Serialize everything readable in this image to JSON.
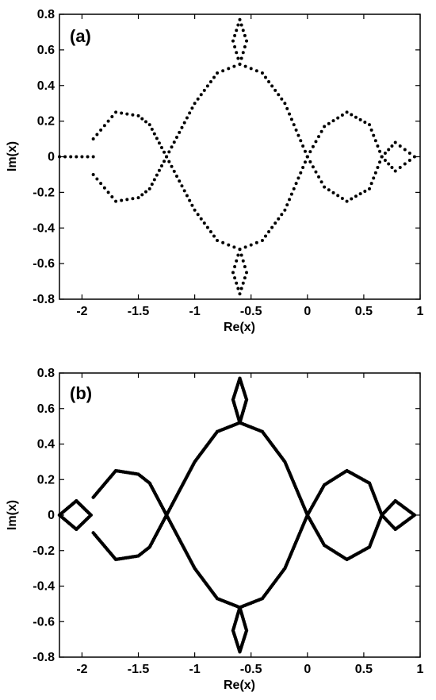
{
  "chart_data": [
    {
      "type": "scatter",
      "panel_label": "(a)",
      "xlabel": "Re(x)",
      "ylabel": "Im(x)",
      "xlim": [
        -2.2,
        1
      ],
      "ylim": [
        -0.8,
        0.8
      ],
      "xticks": [
        -2,
        -1.5,
        -1,
        -0.5,
        0,
        0.5,
        1
      ],
      "xtick_labels": [
        "-2",
        "-1.5",
        "-1",
        "-0.5",
        "0",
        "0.5",
        "1"
      ],
      "yticks": [
        0.8,
        0.6,
        0.4,
        0.2,
        0,
        -0.2,
        -0.4,
        -0.6,
        -0.8
      ],
      "ytick_labels": [
        "0.8",
        "0.6",
        "0.4",
        "0.2",
        "0",
        "-0.2",
        "-0.4",
        "-0.6",
        "-0.8"
      ],
      "grid": false,
      "marker_color": "#000000",
      "sampling": "sparse",
      "series": [
        {
          "x": [
            -2.2,
            -1.9
          ],
          "y": [
            0,
            0
          ]
        },
        {
          "x": [
            -1.9,
            -1.7,
            -1.5,
            -1.4,
            -1.25
          ],
          "y": [
            0.1,
            0.25,
            0.23,
            0.18,
            0
          ]
        },
        {
          "x": [
            -1.9,
            -1.7,
            -1.5,
            -1.4,
            -1.25
          ],
          "y": [
            -0.1,
            -0.25,
            -0.23,
            -0.18,
            0
          ]
        },
        {
          "x": [
            -1.25,
            -1.0,
            -0.8,
            -0.6,
            -0.4,
            -0.2,
            0.0
          ],
          "y": [
            0,
            0.3,
            0.47,
            0.52,
            0.47,
            0.3,
            0
          ]
        },
        {
          "x": [
            -1.25,
            -1.0,
            -0.8,
            -0.6,
            -0.4,
            -0.2,
            0.0
          ],
          "y": [
            0,
            -0.3,
            -0.47,
            -0.52,
            -0.47,
            -0.3,
            0
          ]
        },
        {
          "x": [
            0.0,
            0.15,
            0.35,
            0.55,
            0.66
          ],
          "y": [
            0,
            0.17,
            0.25,
            0.18,
            0
          ]
        },
        {
          "x": [
            0.0,
            0.15,
            0.35,
            0.55,
            0.66
          ],
          "y": [
            0,
            -0.17,
            -0.25,
            -0.18,
            0
          ]
        },
        {
          "x": [
            0.66,
            0.78,
            0.95,
            0.78,
            0.66
          ],
          "y": [
            0,
            0.08,
            0,
            -0.08,
            0
          ]
        },
        {
          "x": [
            -0.6,
            -0.66,
            -0.6,
            -0.54,
            -0.6
          ],
          "y": [
            0.52,
            0.65,
            0.77,
            0.65,
            0.52
          ]
        },
        {
          "x": [
            -0.6,
            -0.66,
            -0.6,
            -0.54,
            -0.6
          ],
          "y": [
            -0.52,
            -0.65,
            -0.77,
            -0.65,
            -0.52
          ]
        }
      ]
    },
    {
      "type": "scatter",
      "panel_label": "(b)",
      "xlabel": "Re(x)",
      "ylabel": "Im(x)",
      "xlim": [
        -2.2,
        1
      ],
      "ylim": [
        -0.8,
        0.8
      ],
      "xticks": [
        -2,
        -1.5,
        -1,
        -0.5,
        0,
        0.5,
        1
      ],
      "xtick_labels": [
        "-2",
        "-1.5",
        "-1",
        "-0.5",
        "0",
        "0.5",
        "1"
      ],
      "yticks": [
        0.8,
        0.6,
        0.4,
        0.2,
        0,
        -0.2,
        -0.4,
        -0.6,
        -0.8
      ],
      "ytick_labels": [
        "0.8",
        "0.6",
        "0.4",
        "0.2",
        "0",
        "-0.2",
        "-0.4",
        "-0.6",
        "-0.8"
      ],
      "grid": false,
      "marker_color": "#000000",
      "sampling": "dense",
      "series": [
        {
          "x": [
            -2.2,
            -2.05,
            -1.92,
            -2.05,
            -2.2
          ],
          "y": [
            0,
            0.08,
            0,
            -0.08,
            0
          ]
        },
        {
          "x": [
            -1.9,
            -1.7,
            -1.5,
            -1.4,
            -1.25
          ],
          "y": [
            0.1,
            0.25,
            0.23,
            0.18,
            0
          ]
        },
        {
          "x": [
            -1.9,
            -1.7,
            -1.5,
            -1.4,
            -1.25
          ],
          "y": [
            -0.1,
            -0.25,
            -0.23,
            -0.18,
            0
          ]
        },
        {
          "x": [
            -1.25,
            -1.0,
            -0.8,
            -0.6,
            -0.4,
            -0.2,
            0.0
          ],
          "y": [
            0,
            0.3,
            0.47,
            0.52,
            0.47,
            0.3,
            0
          ]
        },
        {
          "x": [
            -1.25,
            -1.0,
            -0.8,
            -0.6,
            -0.4,
            -0.2,
            0.0
          ],
          "y": [
            0,
            -0.3,
            -0.47,
            -0.52,
            -0.47,
            -0.3,
            0
          ]
        },
        {
          "x": [
            0.0,
            0.15,
            0.35,
            0.55,
            0.66
          ],
          "y": [
            0,
            0.17,
            0.25,
            0.18,
            0
          ]
        },
        {
          "x": [
            0.0,
            0.15,
            0.35,
            0.55,
            0.66
          ],
          "y": [
            0,
            -0.17,
            -0.25,
            -0.18,
            0
          ]
        },
        {
          "x": [
            0.66,
            0.78,
            0.95,
            0.78,
            0.66
          ],
          "y": [
            0,
            0.08,
            0,
            -0.08,
            0
          ]
        },
        {
          "x": [
            -0.6,
            -0.66,
            -0.6,
            -0.54,
            -0.6
          ],
          "y": [
            0.52,
            0.65,
            0.77,
            0.65,
            0.52
          ]
        },
        {
          "x": [
            -0.6,
            -0.66,
            -0.6,
            -0.54,
            -0.6
          ],
          "y": [
            -0.52,
            -0.65,
            -0.77,
            -0.65,
            -0.52
          ]
        }
      ]
    }
  ]
}
